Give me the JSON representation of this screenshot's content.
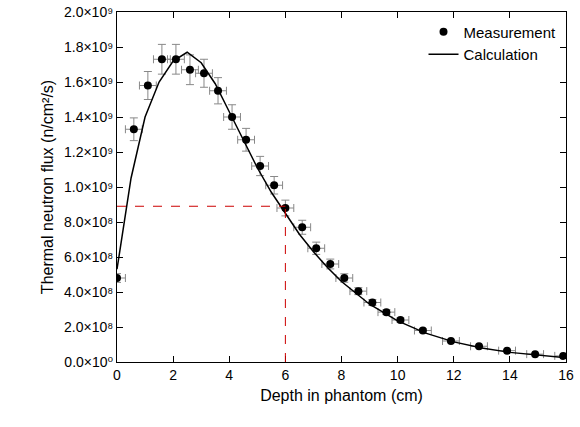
{
  "chart_data": {
    "type": "scatter",
    "x_label": "Depth in phantom (cm)",
    "y_label": "Thermal neutron flux (n/cm²/s)",
    "xlim": [
      0,
      16
    ],
    "xticks": [
      0,
      2,
      4,
      6,
      8,
      10,
      12,
      14,
      16
    ],
    "ylim": [
      0,
      2000000000
    ],
    "yticks": [
      {
        "value": 0,
        "label": "0.0×10⁰"
      },
      {
        "value": 200000000,
        "label": "2.0×10⁸"
      },
      {
        "value": 400000000,
        "label": "4.0×10⁸"
      },
      {
        "value": 600000000,
        "label": "6.0×10⁸"
      },
      {
        "value": 800000000,
        "label": "8.0×10⁸"
      },
      {
        "value": 1000000000,
        "label": "1.0×10⁹"
      },
      {
        "value": 1200000000,
        "label": "1.2×10⁹"
      },
      {
        "value": 1400000000,
        "label": "1.4×10⁹"
      },
      {
        "value": 1600000000,
        "label": "1.6×10⁹"
      },
      {
        "value": 1800000000,
        "label": "1.8×10⁹"
      },
      {
        "value": 2000000000,
        "label": "2.0×10⁹"
      }
    ],
    "grid": false,
    "legend": "top right",
    "series": [
      {
        "name": "Measurement",
        "type": "scatter",
        "marker": "circle",
        "color": "#000000",
        "x": [
          0,
          0.6,
          1.1,
          1.6,
          2.1,
          2.6,
          3.1,
          3.6,
          4.1,
          4.6,
          5.1,
          5.6,
          6.0,
          6.6,
          7.1,
          7.6,
          8.1,
          8.6,
          9.1,
          9.6,
          10.1,
          10.9,
          11.9,
          12.9,
          13.9,
          14.9,
          15.9
        ],
        "values": [
          480000000,
          1330000000,
          1580000000,
          1730000000,
          1730000000,
          1670000000,
          1650000000,
          1550000000,
          1400000000,
          1270000000,
          1120000000,
          1010000000,
          880000000,
          770000000,
          650000000,
          560000000,
          480000000,
          405000000,
          340000000,
          285000000,
          240000000,
          180000000,
          120000000,
          90000000,
          65000000,
          45000000,
          35000000
        ],
        "y_error": [
          25000000,
          65000000,
          80000000,
          85000000,
          85000000,
          85000000,
          80000000,
          75000000,
          70000000,
          65000000,
          55000000,
          50000000,
          45000000,
          40000000,
          35000000,
          28000000,
          24000000,
          20000000,
          17000000,
          14000000,
          12000000,
          9000000,
          6000000,
          5000000,
          4000000,
          3000000,
          2000000
        ],
        "x_error": [
          0.3,
          0.3,
          0.3,
          0.3,
          0.3,
          0.3,
          0.3,
          0.3,
          0.3,
          0.3,
          0.3,
          0.3,
          0.3,
          0.3,
          0.3,
          0.3,
          0.3,
          0.3,
          0.3,
          0.3,
          0.3,
          0.3,
          0.3,
          0.3,
          0.3,
          0.3,
          0.3
        ]
      },
      {
        "name": "Calculation",
        "type": "line",
        "line_style": "solid",
        "color": "#000000",
        "x": [
          0,
          0.5,
          1,
          1.5,
          2,
          2.5,
          3,
          3.5,
          4,
          4.5,
          5,
          5.5,
          6,
          6.5,
          7,
          7.5,
          8,
          9,
          10,
          11,
          12,
          13,
          14,
          15,
          16
        ],
        "values": [
          530000000,
          1050000000,
          1400000000,
          1600000000,
          1720000000,
          1770000000,
          1710000000,
          1590000000,
          1430000000,
          1270000000,
          1110000000,
          970000000,
          850000000,
          730000000,
          630000000,
          540000000,
          460000000,
          330000000,
          235000000,
          165000000,
          115000000,
          80000000,
          55000000,
          38000000,
          25000000
        ]
      }
    ],
    "guide": {
      "x": 6,
      "y": 890000000,
      "color": "#cc0000",
      "line_style": "dashed"
    }
  }
}
